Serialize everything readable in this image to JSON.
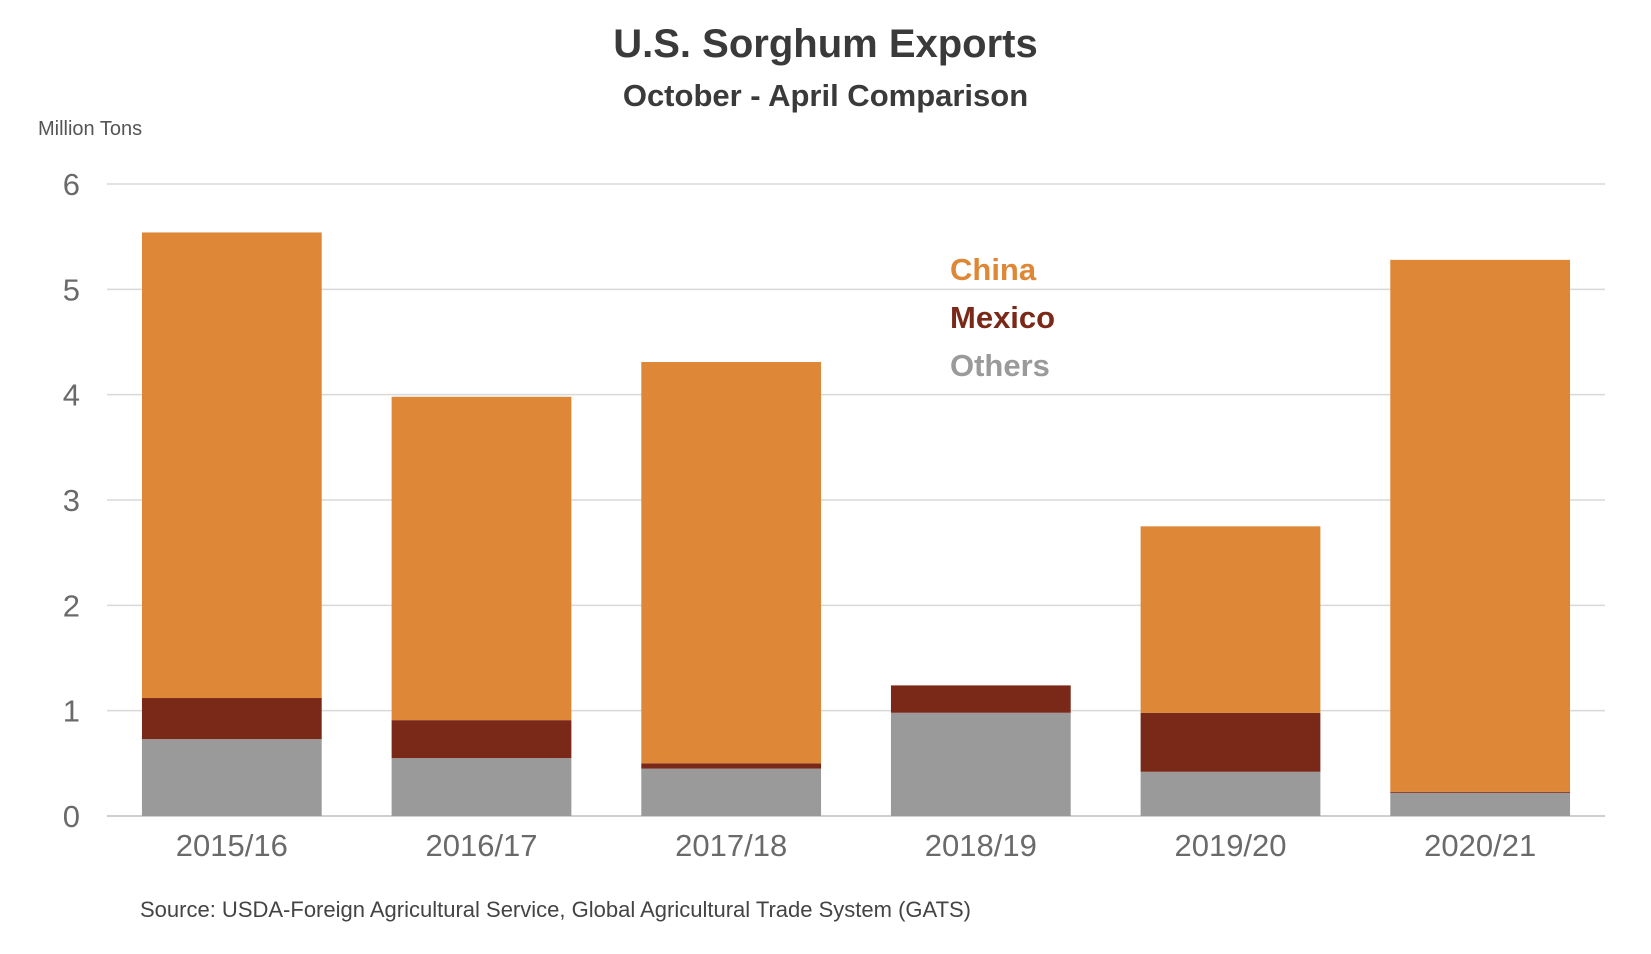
{
  "chart_data": {
    "type": "bar",
    "stacked": true,
    "title": "U.S. Sorghum Exports",
    "subtitle": "October - April Comparison",
    "ylabel": "Million Tons",
    "source": "Source: USDA-Foreign Agricultural Service, Global Agricultural Trade System (GATS)",
    "categories": [
      "2015/16",
      "2016/17",
      "2017/18",
      "2018/19",
      "2019/20",
      "2020/21"
    ],
    "ylim": [
      0,
      6
    ],
    "yticks": [
      0,
      1,
      2,
      3,
      4,
      5,
      6
    ],
    "grid": true,
    "legend_position": "top-center",
    "series": [
      {
        "name": "Others",
        "color": "#9a9a9a",
        "values": [
          0.73,
          0.55,
          0.45,
          0.98,
          0.42,
          0.22
        ]
      },
      {
        "name": "Mexico",
        "color": "#7a2818",
        "values": [
          0.39,
          0.36,
          0.05,
          0.26,
          0.56,
          0.01
        ]
      },
      {
        "name": "China",
        "color": "#de8737",
        "values": [
          4.42,
          3.07,
          3.81,
          0.0,
          1.77,
          5.05
        ]
      }
    ]
  },
  "legend": {
    "china": "China",
    "mexico": "Mexico",
    "others": "Others"
  }
}
